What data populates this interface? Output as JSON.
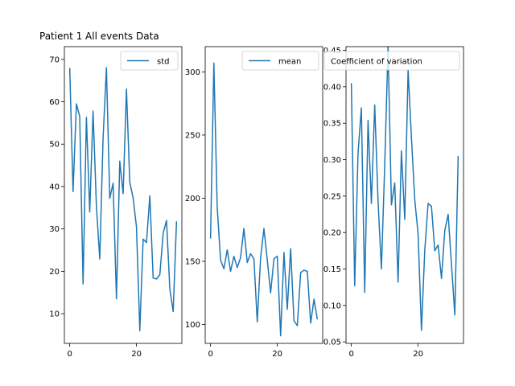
{
  "chart_data": [
    {
      "type": "line",
      "title": "Patient 1 All events Data",
      "legend": "std",
      "legend_loc": "top-right",
      "color": "#1f77b4",
      "xlim": [
        -1.6,
        33.6
      ],
      "ylim": [
        3,
        73
      ],
      "xticks": [
        0,
        20
      ],
      "yticks": [
        10,
        20,
        30,
        40,
        50,
        60,
        70
      ],
      "x": [
        0,
        1,
        2,
        3,
        4,
        5,
        6,
        7,
        8,
        9,
        10,
        11,
        12,
        13,
        14,
        15,
        16,
        17,
        18,
        19,
        20,
        21,
        22,
        23,
        24,
        25,
        26,
        27,
        28,
        29,
        30,
        31,
        32
      ],
      "y": [
        68,
        38.8,
        59.5,
        56.5,
        17,
        56.3,
        34,
        57.8,
        35.3,
        22.9,
        51.5,
        68,
        37.2,
        40.8,
        13.5,
        46,
        38.3,
        63,
        41,
        37.3,
        30.5,
        6,
        27.6,
        26.8,
        37.8,
        18.4,
        18.2,
        19.2,
        29,
        32,
        15.8,
        10.5,
        31.8
      ]
    },
    {
      "type": "line",
      "title": "",
      "legend": "mean",
      "legend_loc": "top-right",
      "color": "#1f77b4",
      "xlim": [
        -1.6,
        33.6
      ],
      "ylim": [
        85,
        320
      ],
      "xticks": [
        0,
        20
      ],
      "yticks": [
        100,
        150,
        200,
        250,
        300
      ],
      "x": [
        0,
        1,
        2,
        3,
        4,
        5,
        6,
        7,
        8,
        9,
        10,
        11,
        12,
        13,
        14,
        15,
        16,
        17,
        18,
        19,
        20,
        21,
        22,
        23,
        24,
        25,
        26,
        27,
        28,
        29,
        30,
        31,
        32
      ],
      "y": [
        168,
        307,
        193,
        151,
        144,
        159,
        142,
        154,
        145,
        153,
        176,
        149,
        156,
        152,
        102,
        153,
        176,
        151,
        125,
        152,
        154,
        91,
        157,
        112,
        160,
        103,
        99,
        141,
        143,
        142,
        101,
        120,
        104
      ]
    },
    {
      "type": "line",
      "title": "",
      "legend": "Coefficient of variation",
      "legend_loc": "top-right",
      "color": "#1f77b4",
      "xlim": [
        -1.6,
        33.6
      ],
      "ylim": [
        0.048,
        0.455
      ],
      "xticks": [
        0,
        20
      ],
      "yticks": [
        0.05,
        0.1,
        0.15,
        0.2,
        0.25,
        0.3,
        0.35,
        0.4,
        0.45
      ],
      "ytick_labels": [
        "0.05",
        "0.10",
        "0.15",
        "0.20",
        "0.25",
        "0.30",
        "0.35",
        "0.40",
        "0.45"
      ],
      "x": [
        0,
        1,
        2,
        3,
        4,
        5,
        6,
        7,
        8,
        9,
        10,
        11,
        12,
        13,
        14,
        15,
        16,
        17,
        18,
        19,
        20,
        21,
        22,
        23,
        24,
        25,
        26,
        27,
        28,
        29,
        30,
        31,
        32
      ],
      "y": [
        0.405,
        0.127,
        0.309,
        0.371,
        0.118,
        0.354,
        0.24,
        0.375,
        0.243,
        0.15,
        0.293,
        0.455,
        0.238,
        0.268,
        0.132,
        0.312,
        0.218,
        0.423,
        0.33,
        0.245,
        0.198,
        0.066,
        0.176,
        0.24,
        0.236,
        0.175,
        0.183,
        0.137,
        0.203,
        0.225,
        0.156,
        0.087,
        0.305
      ]
    }
  ]
}
